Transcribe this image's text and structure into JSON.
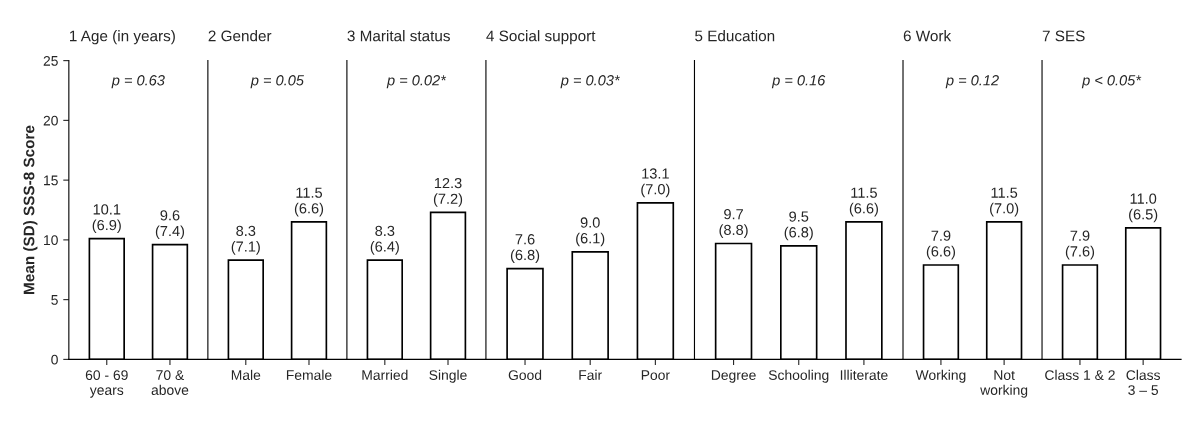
{
  "chart_data": [
    {
      "type": "bar",
      "title": "1 Age (in years)",
      "ylabel": "Mean (SD) SSS-8 Score",
      "categories": [
        "60 - 69\nyears",
        "70 &\nabove"
      ],
      "values": [
        10.1,
        9.6
      ],
      "value_labels": [
        "10.1\n(6.9)",
        "9.6\n(7.4)"
      ],
      "color": "#ffffff",
      "ylim": [
        0,
        25
      ],
      "yticks": [
        0,
        5,
        10,
        15,
        20,
        25
      ],
      "annotations": [
        "p = 0.63"
      ],
      "grid": false,
      "legend": false
    },
    {
      "type": "bar",
      "title": "2 Gender",
      "categories": [
        "Male",
        "Female"
      ],
      "values": [
        8.3,
        11.5
      ],
      "value_labels": [
        "8.3\n(7.1)",
        "11.5\n(6.6)"
      ],
      "color": "#ffffff",
      "ylim": [
        0,
        25
      ],
      "tick_labels": "x",
      "annotations": [
        "p = 0.05"
      ],
      "grid": false,
      "legend": false
    },
    {
      "type": "bar",
      "title": "3 Marital status",
      "categories": [
        "Married",
        "Single"
      ],
      "values": [
        8.3,
        12.3
      ],
      "value_labels": [
        "8.3\n(6.4)",
        "12.3\n(7.2)"
      ],
      "color": "#ffffff",
      "ylim": [
        0,
        25
      ],
      "tick_labels": "x",
      "annotations": [
        "p = 0.02*"
      ],
      "grid": false,
      "legend": false
    },
    {
      "type": "bar",
      "title": "4 Social support",
      "categories": [
        "Good",
        "Fair",
        "Poor"
      ],
      "values": [
        7.6,
        9.0,
        13.1
      ],
      "value_labels": [
        "7.6\n(6.8)",
        "9.0\n(6.1)",
        "13.1\n(7.0)"
      ],
      "color": "#ffffff",
      "ylim": [
        0,
        25
      ],
      "tick_labels": "x",
      "annotations": [
        "p = 0.03*"
      ],
      "grid": false,
      "legend": false
    },
    {
      "type": "bar",
      "title": "5 Education",
      "categories": [
        "Degree",
        "Schooling",
        "Illiterate"
      ],
      "values": [
        9.7,
        9.5,
        11.5
      ],
      "value_labels": [
        "9.7\n(8.8)",
        "9.5\n(6.8)",
        "11.5\n(6.6)"
      ],
      "color": "#ffffff",
      "ylim": [
        0,
        25
      ],
      "tick_labels": "x",
      "annotations": [
        "p = 0.16"
      ],
      "grid": false,
      "legend": false
    },
    {
      "type": "bar",
      "title": "6 Work",
      "categories": [
        "Working",
        "Not\nworking"
      ],
      "values": [
        7.9,
        11.5
      ],
      "value_labels": [
        "7.9\n(6.6)",
        "11.5\n(7.0)"
      ],
      "color": "#ffffff",
      "ylim": [
        0,
        25
      ],
      "tick_labels": "x",
      "annotations": [
        "p = 0.12"
      ],
      "grid": false,
      "legend": false
    },
    {
      "type": "bar",
      "title": "7 SES",
      "categories": [
        "Class 1 & 2",
        "Class\n3 – 5"
      ],
      "values": [
        7.9,
        11.0
      ],
      "value_labels": [
        "7.9\n(7.6)",
        "11.0\n(6.5)"
      ],
      "color": "#ffffff",
      "ylim": [
        0,
        25
      ],
      "tick_labels": "x",
      "annotations": [
        "p < 0.05*"
      ],
      "grid": false,
      "legend": false
    }
  ]
}
